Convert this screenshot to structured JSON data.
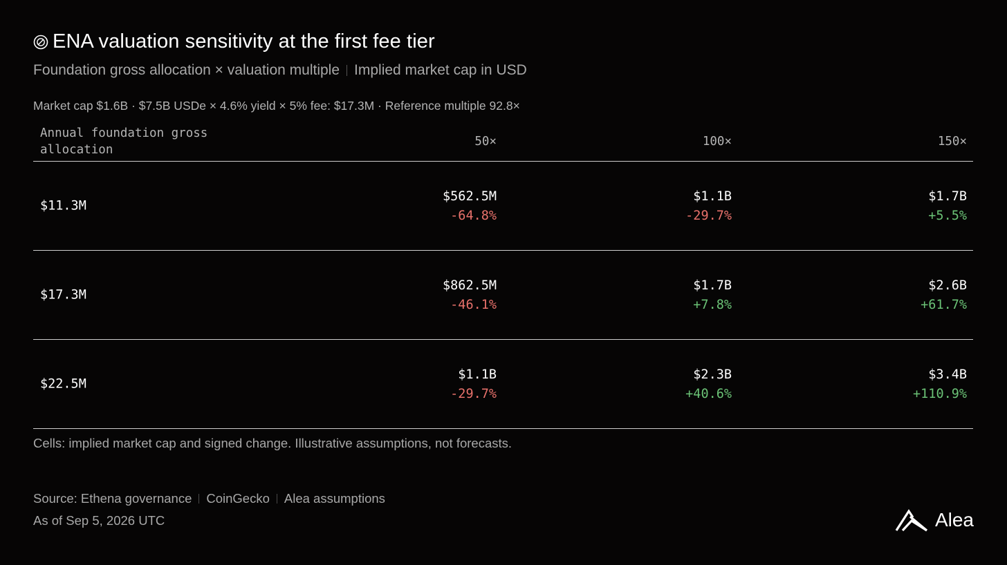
{
  "header": {
    "title": "ENA valuation sensitivity at the first fee tier",
    "title_icon": "coin-icon",
    "subtitle_left": "Foundation gross allocation × valuation multiple",
    "subtitle_right": "Implied market cap in USD",
    "meta": "Market cap $1.6B · $7.5B USDe × 4.6% yield × 5% fee: $17.3M · Reference multiple 92.8×"
  },
  "chart_data": {
    "type": "table",
    "title": "ENA valuation sensitivity at the first fee tier",
    "row_header": "Annual foundation gross allocation",
    "columns": [
      "50×",
      "100×",
      "150×"
    ],
    "rows": [
      {
        "label": "$11.3M",
        "cells": [
          {
            "cap": "$562.5M",
            "change": "-64.8%"
          },
          {
            "cap": "$1.1B",
            "change": "-29.7%"
          },
          {
            "cap": "$1.7B",
            "change": "+5.5%"
          }
        ]
      },
      {
        "label": "$17.3M",
        "cells": [
          {
            "cap": "$862.5M",
            "change": "-46.1%"
          },
          {
            "cap": "$1.7B",
            "change": "+7.8%"
          },
          {
            "cap": "$2.6B",
            "change": "+61.7%"
          }
        ]
      },
      {
        "label": "$22.5M",
        "cells": [
          {
            "cap": "$1.1B",
            "change": "-29.7%"
          },
          {
            "cap": "$2.3B",
            "change": "+40.6%"
          },
          {
            "cap": "$3.4B",
            "change": "+110.9%"
          }
        ]
      }
    ]
  },
  "footer": {
    "note": "Cells: implied market cap and signed change. Illustrative assumptions, not forecasts.",
    "sources": [
      "Source: Ethena governance",
      "CoinGecko",
      "Alea assumptions"
    ],
    "as_of": "As of Sep 5, 2026 UTC"
  },
  "brand": {
    "name": "Alea",
    "icon": "alea-logo-icon"
  },
  "colors": {
    "background": "#060505",
    "negative": "#e8716b",
    "positive": "#6bc276",
    "text": "#ffffff",
    "muted": "#a8a8a8"
  }
}
